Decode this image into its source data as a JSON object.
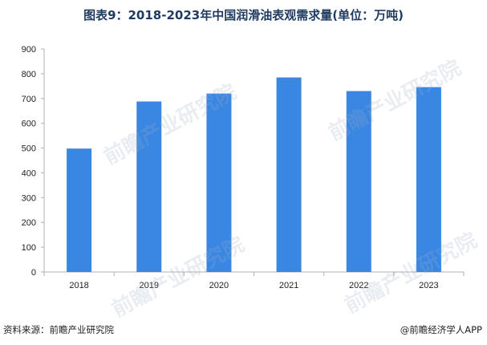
{
  "chart_data": {
    "type": "bar",
    "title": "图表9：2018-2023年中国润滑油表观需求量(单位：万吨)",
    "categories": [
      "2018",
      "2019",
      "2020",
      "2021",
      "2022",
      "2023"
    ],
    "series": [
      {
        "values": [
          498,
          688,
          720,
          785,
          730,
          746
        ]
      }
    ],
    "ylim": [
      0,
      900
    ],
    "yticks": [
      0,
      100,
      200,
      300,
      400,
      500,
      600,
      700,
      800,
      900
    ],
    "grid": false,
    "bar_color": "#3a86e3"
  },
  "footer": {
    "source": "资料来源：前瞻产业研究院",
    "credit": "@前瞻经济学人APP"
  },
  "watermark": "前瞻产业研究院"
}
